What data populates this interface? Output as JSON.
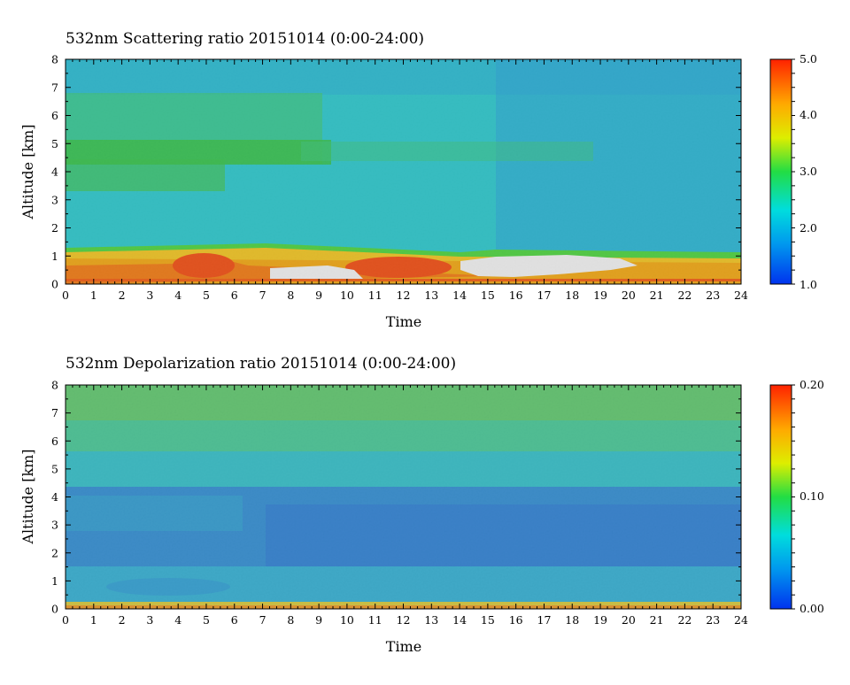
{
  "charts": [
    {
      "title": "532nm Scattering ratio  20151014 (0:00-24:00)",
      "xlabel": "Time",
      "ylabel": "Altitude [km]",
      "colorbar_labels": [
        "5.0",
        "4.0",
        "3.0",
        "2.0",
        "1.0"
      ]
    },
    {
      "title": "532nm Depolarization ratio  20151014 (0:00-24:00)",
      "xlabel": "Time",
      "ylabel": "Altitude [km]",
      "colorbar_labels": [
        "0.20",
        "0.10",
        "0.00"
      ]
    }
  ],
  "chart_data": [
    {
      "type": "heatmap",
      "title": "532nm Scattering ratio  20151014 (0:00-24:00)",
      "xlabel": "Time",
      "ylabel": "Altitude [km]",
      "xlim": [
        0,
        24
      ],
      "ylim": [
        0,
        8
      ],
      "x_ticks": [
        0,
        1,
        2,
        3,
        4,
        5,
        6,
        7,
        8,
        9,
        10,
        11,
        12,
        13,
        14,
        15,
        16,
        17,
        18,
        19,
        20,
        21,
        22,
        23,
        24
      ],
      "y_ticks": [
        0,
        1,
        2,
        3,
        4,
        5,
        6,
        7,
        8
      ],
      "colorbar": {
        "min": 1.0,
        "max": 5.0,
        "ticks": [
          1.0,
          2.0,
          3.0,
          4.0,
          5.0
        ],
        "colormap": "rainbow"
      },
      "features": [
        {
          "description": "background scattering ratio",
          "time": [
            0,
            24
          ],
          "altitude_km": [
            1.3,
            8
          ],
          "value": 2.0
        },
        {
          "description": "enhanced layer",
          "time": [
            0,
            10
          ],
          "altitude_km": [
            4.2,
            5.0
          ],
          "value": 2.7
        },
        {
          "description": "enhanced layer",
          "time": [
            0,
            5.5
          ],
          "altitude_km": [
            3.3,
            4.2
          ],
          "value": 2.5
        },
        {
          "description": "boundary layer",
          "time": [
            0,
            24
          ],
          "altitude_km": [
            0.2,
            1.3
          ],
          "value": 3.8
        },
        {
          "description": "high values",
          "time": [
            4.2,
            6.0
          ],
          "altitude_km": [
            0.3,
            1.0
          ],
          "value": 4.8
        },
        {
          "description": "high values",
          "time": [
            10.5,
            13.5
          ],
          "altitude_km": [
            0.3,
            1.0
          ],
          "value": 4.8
        },
        {
          "description": "saturated / missing (white)",
          "time": [
            7.5,
            10.5
          ],
          "altitude_km": [
            0.2,
            0.7
          ]
        },
        {
          "description": "saturated / missing (white)",
          "time": [
            14.5,
            19.5
          ],
          "altitude_km": [
            0.3,
            1.0
          ]
        }
      ]
    },
    {
      "type": "heatmap",
      "title": "532nm Depolarization ratio  20151014 (0:00-24:00)",
      "xlabel": "Time",
      "ylabel": "Altitude [km]",
      "xlim": [
        0,
        24
      ],
      "ylim": [
        0,
        8
      ],
      "x_ticks": [
        0,
        1,
        2,
        3,
        4,
        5,
        6,
        7,
        8,
        9,
        10,
        11,
        12,
        13,
        14,
        15,
        16,
        17,
        18,
        19,
        20,
        21,
        22,
        23,
        24
      ],
      "y_ticks": [
        0,
        1,
        2,
        3,
        4,
        5,
        6,
        7,
        8
      ],
      "colorbar": {
        "min": 0.0,
        "max": 0.2,
        "ticks": [
          0.0,
          0.1,
          0.2
        ],
        "colormap": "rainbow"
      },
      "features": [
        {
          "description": "upper layer",
          "time": [
            0,
            24
          ],
          "altitude_km": [
            5.5,
            8
          ],
          "value": 0.08
        },
        {
          "description": "mid layer",
          "time": [
            0,
            24
          ],
          "altitude_km": [
            4.3,
            5.5
          ],
          "value": 0.055
        },
        {
          "description": "low depolarization",
          "time": [
            0,
            24
          ],
          "altitude_km": [
            1.3,
            4.3
          ],
          "value": 0.025
        },
        {
          "description": "near-surface layer",
          "time": [
            0,
            24
          ],
          "altitude_km": [
            0.2,
            1.3
          ],
          "value": 0.04
        },
        {
          "description": "surface band",
          "time": [
            0,
            24
          ],
          "altitude_km": [
            0,
            0.15
          ],
          "value": 0.15
        }
      ]
    }
  ]
}
